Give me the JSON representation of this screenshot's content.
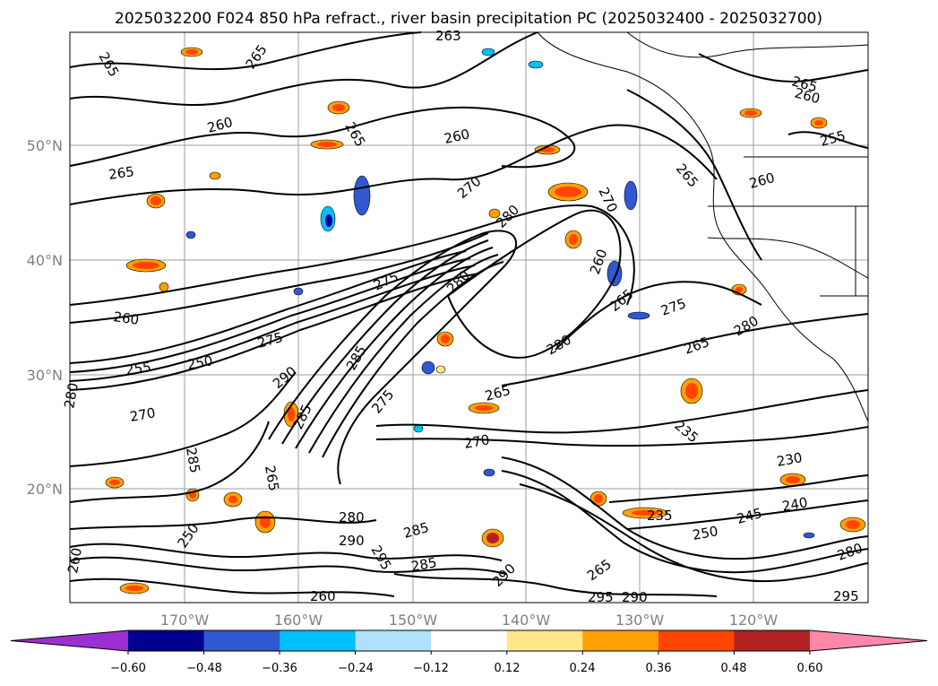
{
  "title": "2025032200 F024 850 hPa refract., river basin precipitation PC (2025032400 - 2025032700)",
  "lat_labels": [
    "50°N",
    "40°N",
    "30°N",
    "20°N"
  ],
  "lon_labels": [
    "170°W",
    "160°W",
    "150°W",
    "140°W",
    "130°W",
    "120°W"
  ],
  "colorbar": {
    "tick_labels": [
      "−0.60",
      "−0.48",
      "−0.36",
      "−0.24",
      "−0.12",
      "0.12",
      "0.24",
      "0.36",
      "0.48",
      "0.60"
    ],
    "colors": [
      "#9b30d0",
      "#000090",
      "#3058d0",
      "#00bfff",
      "#b0e2ff",
      "#ffffff",
      "#ffe88a",
      "#ffa000",
      "#ff4500",
      "#b22222",
      "#ff88aa"
    ]
  },
  "contour_labels": [
    "265",
    "265",
    "263",
    "260",
    "265",
    "260",
    "265",
    "265",
    "260",
    "255",
    "270",
    "280",
    "270",
    "265",
    "260",
    "275",
    "280",
    "275",
    "265",
    "260",
    "275",
    "280",
    "260",
    "255",
    "250",
    "285",
    "265",
    "280",
    "265",
    "270",
    "280",
    "290",
    "285",
    "285",
    "275",
    "270",
    "265",
    "235",
    "230",
    "245",
    "240",
    "235",
    "250",
    "280",
    "285",
    "280",
    "290",
    "295",
    "290",
    "285",
    "265",
    "260",
    "295",
    "290",
    "295",
    "250",
    "260"
  ]
}
